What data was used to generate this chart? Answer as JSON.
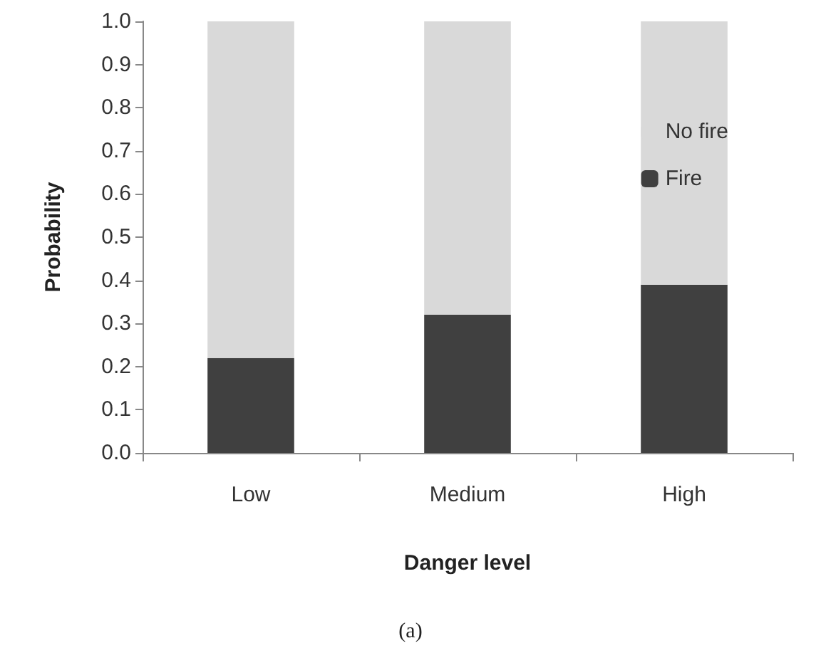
{
  "chart_data": {
    "type": "bar",
    "stacked": true,
    "xlabel": "Danger level",
    "ylabel": "Probability",
    "categories": [
      "Low",
      "Medium",
      "High"
    ],
    "series": [
      {
        "name": "Fire",
        "color": "#404040",
        "values": [
          0.22,
          0.32,
          0.39
        ]
      },
      {
        "name": "No fire",
        "color": "#d9d9d9",
        "values": [
          0.78,
          0.68,
          0.61
        ]
      }
    ],
    "ylim": [
      0,
      1
    ],
    "yticks": [
      {
        "value": 0,
        "label": "0.0"
      },
      {
        "value": 0.1,
        "label": "0.1"
      },
      {
        "value": 0.2,
        "label": "0.2"
      },
      {
        "value": 0.3,
        "label": "0.3"
      },
      {
        "value": 0.4,
        "label": "0.4"
      },
      {
        "value": 0.5,
        "label": "0.5"
      },
      {
        "value": 0.6,
        "label": "0.6"
      },
      {
        "value": 0.7,
        "label": "0.7"
      },
      {
        "value": 0.8,
        "label": "0.8"
      },
      {
        "value": 0.9,
        "label": "0.9"
      },
      {
        "value": 1,
        "label": "1.0"
      }
    ],
    "grid": false,
    "legend": "right",
    "annotations": [
      "(a)"
    ]
  }
}
